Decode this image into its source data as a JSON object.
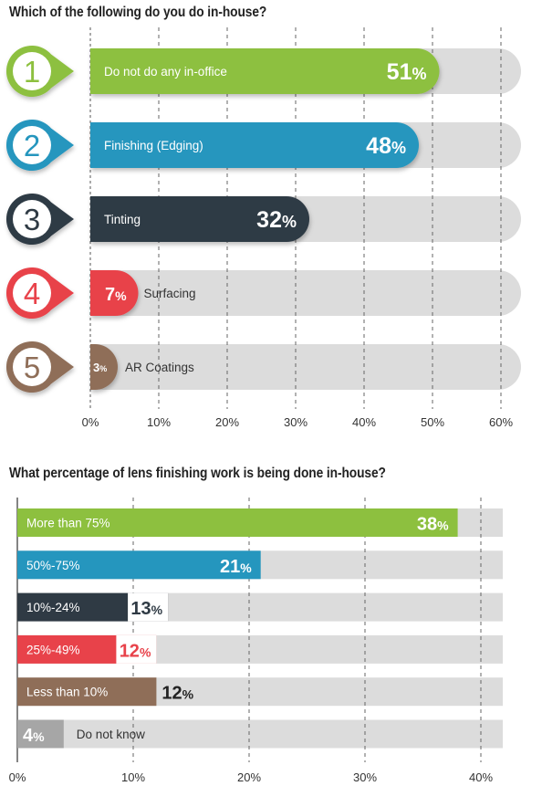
{
  "chart_data": [
    {
      "type": "bar",
      "orientation": "horizontal",
      "title": "Which of the following do you do in-house?",
      "xlim": [
        0,
        60
      ],
      "xticks": [
        "0%",
        "10%",
        "20%",
        "30%",
        "40%",
        "50%",
        "60%"
      ],
      "grid": true,
      "items": [
        {
          "rank": "1",
          "label": "Do not do any in-office",
          "value": 51,
          "display": "51",
          "color": "#8dc03f"
        },
        {
          "rank": "2",
          "label": "Finishing (Edging)",
          "value": 48,
          "display": "48",
          "color": "#2596be"
        },
        {
          "rank": "3",
          "label": "Tinting",
          "value": 32,
          "display": "32",
          "color": "#2f3a44"
        },
        {
          "rank": "4",
          "label": "Surfacing",
          "value": 7,
          "display": "7",
          "color": "#e8424a"
        },
        {
          "rank": "5",
          "label": "AR Coatings",
          "value": 3,
          "display": "3",
          "color": "#8f6e58"
        }
      ]
    },
    {
      "type": "bar",
      "orientation": "horizontal",
      "title": "What percentage of lens finishing work is being done in-house?",
      "xlim": [
        0,
        40
      ],
      "xticks": [
        "0%",
        "10%",
        "20%",
        "30%",
        "40%"
      ],
      "grid": true,
      "items": [
        {
          "label": "More than 75%",
          "value": 38,
          "display": "38",
          "color": "#8dc03f"
        },
        {
          "label": "50%-75%",
          "value": 21,
          "display": "21",
          "color": "#2596be"
        },
        {
          "label": "10%-24%",
          "value": 13,
          "display": "13",
          "color": "#2f3a44"
        },
        {
          "label": "25%-49%",
          "value": 12,
          "display": "12",
          "color": "#e8424a"
        },
        {
          "label": "Less than 10%",
          "value": 12,
          "display": "12",
          "color": "#8f6e58"
        },
        {
          "label": "Do not know",
          "value": 4,
          "display": "4",
          "color": "#a6a6a6"
        }
      ]
    }
  ]
}
